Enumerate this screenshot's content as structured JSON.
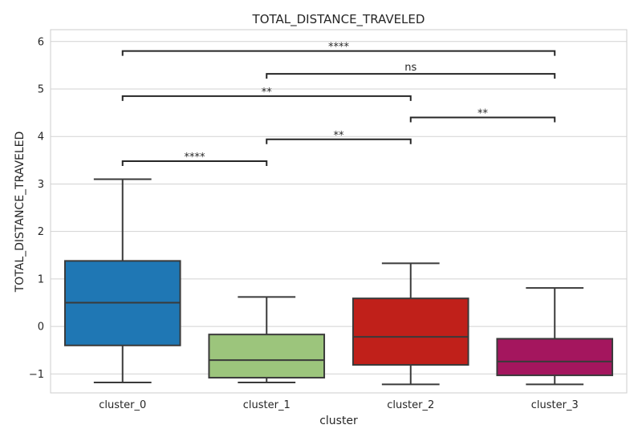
{
  "chart_data": {
    "type": "box",
    "title": "TOTAL_DISTANCE_TRAVELED",
    "xlabel": "cluster",
    "ylabel": "TOTAL_DISTANCE_TRAVELED",
    "ylim": [
      -1.4,
      6.25
    ],
    "yticks": [
      -1,
      0,
      1,
      2,
      3,
      4,
      5,
      6
    ],
    "ytick_labels": [
      "−1",
      "0",
      "1",
      "2",
      "3",
      "4",
      "5",
      "6"
    ],
    "grid": true,
    "categories": [
      "cluster_0",
      "cluster_1",
      "cluster_2",
      "cluster_3"
    ],
    "boxes": [
      {
        "category": "cluster_0",
        "whisker_low": -1.18,
        "q1": -0.4,
        "median": 0.5,
        "q3": 1.38,
        "whisker_high": 3.1,
        "color": "#1f77b4"
      },
      {
        "category": "cluster_1",
        "whisker_low": -1.18,
        "q1": -1.08,
        "median": -0.71,
        "q3": -0.17,
        "whisker_high": 0.62,
        "color": "#9cc57c"
      },
      {
        "category": "cluster_2",
        "whisker_low": -1.22,
        "q1": -0.81,
        "median": -0.22,
        "q3": 0.59,
        "whisker_high": 1.33,
        "color": "#c0201a"
      },
      {
        "category": "cluster_3",
        "whisker_low": -1.22,
        "q1": -1.03,
        "median": -0.74,
        "q3": -0.26,
        "whisker_high": 0.81,
        "color": "#a4165e"
      }
    ],
    "significance": [
      {
        "from": "cluster_0",
        "to": "cluster_1",
        "y": 3.48,
        "label": "****"
      },
      {
        "from": "cluster_1",
        "to": "cluster_2",
        "y": 3.94,
        "label": "**"
      },
      {
        "from": "cluster_2",
        "to": "cluster_3",
        "y": 4.4,
        "label": "**"
      },
      {
        "from": "cluster_0",
        "to": "cluster_2",
        "y": 4.85,
        "label": "**"
      },
      {
        "from": "cluster_1",
        "to": "cluster_3",
        "y": 5.32,
        "label": "ns"
      },
      {
        "from": "cluster_0",
        "to": "cluster_3",
        "y": 5.8,
        "label": "****"
      }
    ]
  }
}
